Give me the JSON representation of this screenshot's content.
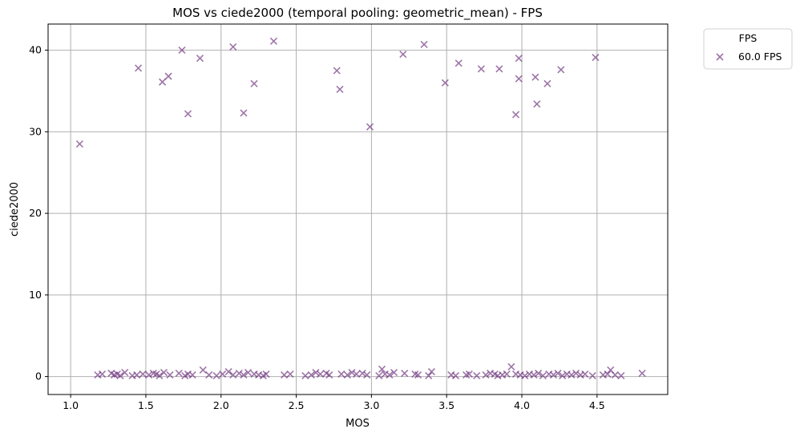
{
  "chart_data": {
    "type": "scatter",
    "title": "MOS vs ciede2000 (temporal pooling: geometric_mean) - FPS",
    "xlabel": "MOS",
    "ylabel": "ciede2000",
    "xlim": [
      0.85,
      4.97
    ],
    "ylim": [
      -2.2,
      43.2
    ],
    "xticks": [
      "1.0",
      "1.5",
      "2.0",
      "2.5",
      "3.0",
      "3.5",
      "4.0",
      "4.5"
    ],
    "yticks": [
      "0",
      "10",
      "20",
      "30",
      "40"
    ],
    "grid": true,
    "legend": {
      "title": "FPS",
      "placement": "outside-top-right",
      "entries": [
        "60.0 FPS"
      ]
    },
    "colors": {
      "marker": "#6a2c79",
      "grid": "#b0b0b0"
    },
    "series": [
      {
        "name": "60.0 FPS",
        "marker": "x",
        "points": [
          [
            1.06,
            28.5
          ],
          [
            1.45,
            37.8
          ],
          [
            1.61,
            36.1
          ],
          [
            1.65,
            36.8
          ],
          [
            1.74,
            40.0
          ],
          [
            1.78,
            32.2
          ],
          [
            1.86,
            39.0
          ],
          [
            2.08,
            40.4
          ],
          [
            2.15,
            32.3
          ],
          [
            2.22,
            35.9
          ],
          [
            2.35,
            41.1
          ],
          [
            2.77,
            37.5
          ],
          [
            2.79,
            35.2
          ],
          [
            2.99,
            30.6
          ],
          [
            3.21,
            39.5
          ],
          [
            3.35,
            40.7
          ],
          [
            3.49,
            36.0
          ],
          [
            3.58,
            38.4
          ],
          [
            3.73,
            37.7
          ],
          [
            3.85,
            37.7
          ],
          [
            3.96,
            32.1
          ],
          [
            3.98,
            39.0
          ],
          [
            3.98,
            36.5
          ],
          [
            4.09,
            36.7
          ],
          [
            4.1,
            33.4
          ],
          [
            4.17,
            35.9
          ],
          [
            4.26,
            37.6
          ],
          [
            4.49,
            39.1
          ],
          [
            1.18,
            0.2
          ],
          [
            1.21,
            0.3
          ],
          [
            1.27,
            0.4
          ],
          [
            1.29,
            0.2
          ],
          [
            1.31,
            0.3
          ],
          [
            1.33,
            0.1
          ],
          [
            1.36,
            0.5
          ],
          [
            1.41,
            0.1
          ],
          [
            1.44,
            0.2
          ],
          [
            1.48,
            0.3
          ],
          [
            1.52,
            0.2
          ],
          [
            1.55,
            0.4
          ],
          [
            1.57,
            0.3
          ],
          [
            1.59,
            0.1
          ],
          [
            1.62,
            0.5
          ],
          [
            1.66,
            0.2
          ],
          [
            1.72,
            0.4
          ],
          [
            1.76,
            0.1
          ],
          [
            1.78,
            0.3
          ],
          [
            1.81,
            0.2
          ],
          [
            1.88,
            0.8
          ],
          [
            1.92,
            0.2
          ],
          [
            1.97,
            0.1
          ],
          [
            2.01,
            0.3
          ],
          [
            2.05,
            0.6
          ],
          [
            2.08,
            0.2
          ],
          [
            2.12,
            0.4
          ],
          [
            2.15,
            0.2
          ],
          [
            2.18,
            0.5
          ],
          [
            2.22,
            0.3
          ],
          [
            2.25,
            0.2
          ],
          [
            2.28,
            0.1
          ],
          [
            2.3,
            0.3
          ],
          [
            2.42,
            0.2
          ],
          [
            2.46,
            0.3
          ],
          [
            2.56,
            0.1
          ],
          [
            2.6,
            0.2
          ],
          [
            2.63,
            0.5
          ],
          [
            2.66,
            0.3
          ],
          [
            2.7,
            0.4
          ],
          [
            2.72,
            0.2
          ],
          [
            2.8,
            0.3
          ],
          [
            2.84,
            0.2
          ],
          [
            2.87,
            0.5
          ],
          [
            2.9,
            0.3
          ],
          [
            2.94,
            0.4
          ],
          [
            2.97,
            0.2
          ],
          [
            3.05,
            0.1
          ],
          [
            3.07,
            0.9
          ],
          [
            3.09,
            0.3
          ],
          [
            3.12,
            0.2
          ],
          [
            3.15,
            0.5
          ],
          [
            3.22,
            0.4
          ],
          [
            3.29,
            0.3
          ],
          [
            3.31,
            0.2
          ],
          [
            3.38,
            0.1
          ],
          [
            3.4,
            0.6
          ],
          [
            3.53,
            0.2
          ],
          [
            3.56,
            0.1
          ],
          [
            3.63,
            0.2
          ],
          [
            3.65,
            0.3
          ],
          [
            3.7,
            0.1
          ],
          [
            3.76,
            0.2
          ],
          [
            3.79,
            0.4
          ],
          [
            3.82,
            0.3
          ],
          [
            3.84,
            0.1
          ],
          [
            3.87,
            0.2
          ],
          [
            3.9,
            0.3
          ],
          [
            3.93,
            1.2
          ],
          [
            3.96,
            0.3
          ],
          [
            3.99,
            0.2
          ],
          [
            4.02,
            0.1
          ],
          [
            4.05,
            0.3
          ],
          [
            4.08,
            0.2
          ],
          [
            4.11,
            0.4
          ],
          [
            4.14,
            0.1
          ],
          [
            4.18,
            0.3
          ],
          [
            4.21,
            0.2
          ],
          [
            4.24,
            0.4
          ],
          [
            4.27,
            0.1
          ],
          [
            4.3,
            0.3
          ],
          [
            4.33,
            0.2
          ],
          [
            4.36,
            0.4
          ],
          [
            4.39,
            0.2
          ],
          [
            4.42,
            0.3
          ],
          [
            4.47,
            0.1
          ],
          [
            4.54,
            0.2
          ],
          [
            4.57,
            0.3
          ],
          [
            4.59,
            0.8
          ],
          [
            4.62,
            0.2
          ],
          [
            4.66,
            0.1
          ],
          [
            4.8,
            0.4
          ]
        ]
      }
    ]
  }
}
